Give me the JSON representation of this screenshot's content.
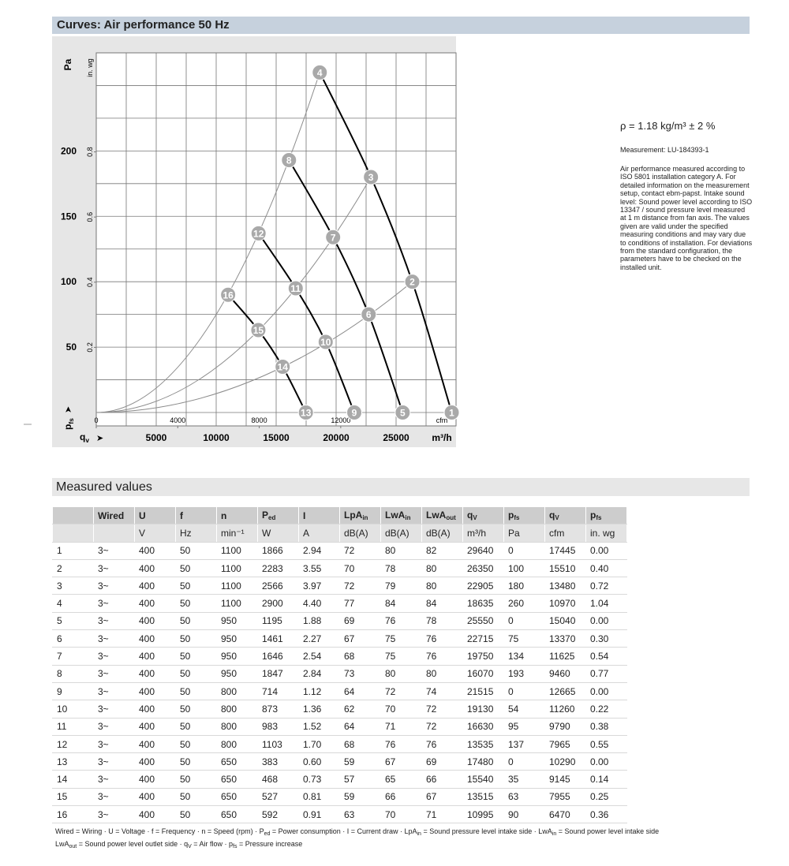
{
  "curves_header": "Curves: Air performance 50 Hz",
  "chart_data": {
    "type": "line",
    "x_label": {
      "text": "q",
      "sub": "v"
    },
    "x_unit": "m³/h",
    "x2_unit": "cfm",
    "y_label": {
      "text": "p",
      "sub": "fs"
    },
    "y_unit": "Pa",
    "y2_unit": "in. wg",
    "xlim": [
      0,
      30000
    ],
    "xticks": [
      5000,
      10000,
      15000,
      20000,
      25000
    ],
    "x2lim": [
      0,
      17660
    ],
    "x2ticks": [
      0,
      4000,
      8000,
      12000
    ],
    "ylim": [
      0,
      275
    ],
    "yticks": [
      50,
      100,
      150,
      200
    ],
    "y2lim": [
      0,
      1.104
    ],
    "y2ticks": [
      0.2,
      0.4,
      0.6,
      0.8
    ],
    "grid": true,
    "speed_curve_color": "#000000",
    "system_curve_color": "#8c8c8c",
    "point_color": "#a9a9a9"
  },
  "notes": {
    "density": "ρ = 1.18 kg/m³ ± 2 %",
    "measurement": "Measurement: LU-184393-1",
    "description": "Air performance measured according to ISO 5801 installation category A. For detailed information on the measurement setup, contact ebm-papst. Intake sound level: Sound power level according to ISO 13347 / sound pressure level measured at 1 m distance from fan axis. The values given are valid under the specified measuring conditions and may vary due to conditions of installation. For deviations from the standard configuration, the parameters have to be checked on the installed unit."
  },
  "measured_header": "Measured values",
  "table": {
    "header": [
      [
        null,
        "Wired",
        "U",
        "f",
        "n",
        {
          "text": "P",
          "sub": "ed"
        },
        "I",
        {
          "text": "LpA",
          "sub": "in"
        },
        {
          "text": "LwA",
          "sub": "in"
        },
        {
          "text": "LwA",
          "sub": "out"
        },
        {
          "text": "q",
          "sub": "V"
        },
        {
          "text": "p",
          "sub": "fs"
        },
        {
          "text": "q",
          "sub": "V"
        },
        {
          "text": "p",
          "sub": "fs"
        }
      ],
      [
        null,
        null,
        "V",
        "Hz",
        "min⁻¹",
        "W",
        "A",
        "dB(A)",
        "dB(A)",
        "dB(A)",
        "m³/h",
        "Pa",
        "cfm",
        "in. wg"
      ]
    ],
    "rows": [
      [
        "1",
        "3~",
        "400",
        "50",
        "1100",
        "1866",
        "2.94",
        "72",
        "80",
        "82",
        "29640",
        "0",
        "17445",
        "0.00"
      ],
      [
        "2",
        "3~",
        "400",
        "50",
        "1100",
        "2283",
        "3.55",
        "70",
        "78",
        "80",
        "26350",
        "100",
        "15510",
        "0.40"
      ],
      [
        "3",
        "3~",
        "400",
        "50",
        "1100",
        "2566",
        "3.97",
        "72",
        "79",
        "80",
        "22905",
        "180",
        "13480",
        "0.72"
      ],
      [
        "4",
        "3~",
        "400",
        "50",
        "1100",
        "2900",
        "4.40",
        "77",
        "84",
        "84",
        "18635",
        "260",
        "10970",
        "1.04"
      ],
      [
        "5",
        "3~",
        "400",
        "50",
        "950",
        "1195",
        "1.88",
        "69",
        "76",
        "78",
        "25550",
        "0",
        "15040",
        "0.00"
      ],
      [
        "6",
        "3~",
        "400",
        "50",
        "950",
        "1461",
        "2.27",
        "67",
        "75",
        "76",
        "22715",
        "75",
        "13370",
        "0.30"
      ],
      [
        "7",
        "3~",
        "400",
        "50",
        "950",
        "1646",
        "2.54",
        "68",
        "75",
        "76",
        "19750",
        "134",
        "11625",
        "0.54"
      ],
      [
        "8",
        "3~",
        "400",
        "50",
        "950",
        "1847",
        "2.84",
        "73",
        "80",
        "80",
        "16070",
        "193",
        "9460",
        "0.77"
      ],
      [
        "9",
        "3~",
        "400",
        "50",
        "800",
        "714",
        "1.12",
        "64",
        "72",
        "74",
        "21515",
        "0",
        "12665",
        "0.00"
      ],
      [
        "10",
        "3~",
        "400",
        "50",
        "800",
        "873",
        "1.36",
        "62",
        "70",
        "72",
        "19130",
        "54",
        "11260",
        "0.22"
      ],
      [
        "11",
        "3~",
        "400",
        "50",
        "800",
        "983",
        "1.52",
        "64",
        "71",
        "72",
        "16630",
        "95",
        "9790",
        "0.38"
      ],
      [
        "12",
        "3~",
        "400",
        "50",
        "800",
        "1103",
        "1.70",
        "68",
        "76",
        "76",
        "13535",
        "137",
        "7965",
        "0.55"
      ],
      [
        "13",
        "3~",
        "400",
        "50",
        "650",
        "383",
        "0.60",
        "59",
        "67",
        "69",
        "17480",
        "0",
        "10290",
        "0.00"
      ],
      [
        "14",
        "3~",
        "400",
        "50",
        "650",
        "468",
        "0.73",
        "57",
        "65",
        "66",
        "15540",
        "35",
        "9145",
        "0.14"
      ],
      [
        "15",
        "3~",
        "400",
        "50",
        "650",
        "527",
        "0.81",
        "59",
        "66",
        "67",
        "13515",
        "63",
        "7955",
        "0.25"
      ],
      [
        "16",
        "3~",
        "400",
        "50",
        "650",
        "592",
        "0.91",
        "63",
        "70",
        "71",
        "10995",
        "90",
        "6470",
        "0.36"
      ]
    ]
  },
  "footnote": [
    [
      {
        "text": "Wired = Wiring · U = Voltage · f = Frequency · n = Speed (rpm) · P"
      },
      {
        "sub": "ed"
      },
      {
        "text": " = Power consumption · I = Current draw · LpA"
      },
      {
        "sub": "in"
      },
      {
        "text": " = Sound pressure level intake side · LwA"
      },
      {
        "sub": "in"
      },
      {
        "text": " = Sound power level intake side"
      }
    ],
    [
      {
        "text": "LwA"
      },
      {
        "sub": "out"
      },
      {
        "text": " = Sound power level outlet side · q"
      },
      {
        "sub": "V"
      },
      {
        "text": " = Air flow · p"
      },
      {
        "sub": "fs"
      },
      {
        "text": " = Pressure increase"
      }
    ]
  ]
}
